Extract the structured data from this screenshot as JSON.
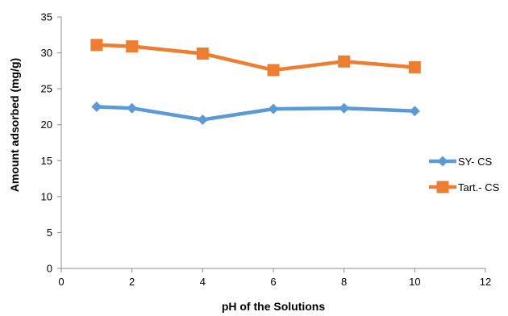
{
  "chart_data": {
    "type": "line",
    "xlabel": "pH of the Solutions",
    "ylabel": "Amount adsorbed (mg/g)",
    "xlim": [
      0,
      12
    ],
    "ylim": [
      0,
      35
    ],
    "xticks": [
      0,
      2,
      4,
      6,
      8,
      10,
      12
    ],
    "yticks": [
      0,
      5,
      10,
      15,
      20,
      25,
      30,
      35
    ],
    "grid": false,
    "legend_position": "right",
    "series": [
      {
        "name": "SY- CS",
        "marker": "diamond",
        "color": "#5B9BD5",
        "x": [
          1,
          2,
          4,
          6,
          8,
          10
        ],
        "values": [
          22.5,
          22.3,
          20.7,
          22.2,
          22.3,
          21.9
        ]
      },
      {
        "name": "Tart.- CS",
        "marker": "square",
        "color": "#ED7D31",
        "x": [
          1,
          2,
          4,
          6,
          8,
          10
        ],
        "values": [
          31.1,
          30.9,
          29.9,
          27.6,
          28.8,
          28.0
        ]
      }
    ]
  }
}
